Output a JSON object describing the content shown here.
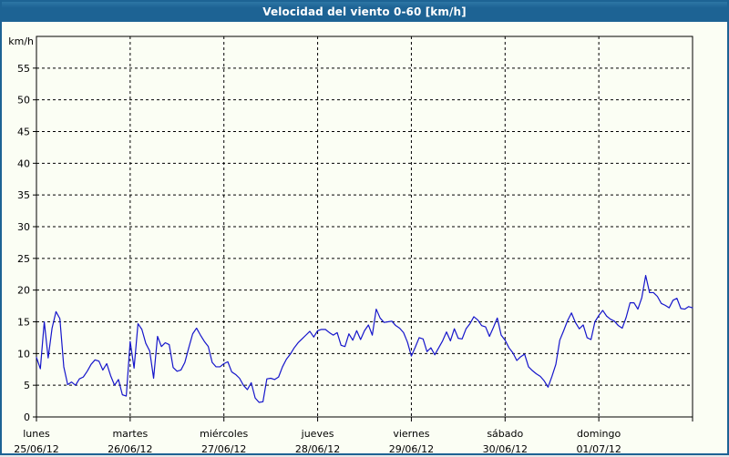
{
  "window": {
    "title": "Velocidad del viento 0-60 [km/h]"
  },
  "colors": {
    "titlebar": "#1d6394",
    "frame": "#1d6394",
    "background": "#fbfef4",
    "line": "#1515cb",
    "grid": "#000000",
    "text": "#000000"
  },
  "chart_data": {
    "type": "line",
    "title": "Velocidad del viento 0-60 [km/h]",
    "ylabel": "km/h",
    "unit": "km/h",
    "ylim": [
      0,
      60
    ],
    "y_tick_step": 5,
    "y_tick_labels": [
      "0",
      "5",
      "10",
      "15",
      "20",
      "25",
      "30",
      "35",
      "40",
      "45",
      "50",
      "55"
    ],
    "grid": "dashed",
    "legend_position": "none",
    "samples_per_day": 24,
    "x_days": [
      {
        "name": "lunes",
        "date": "25/06/12"
      },
      {
        "name": "martes",
        "date": "26/06/12"
      },
      {
        "name": "miércoles",
        "date": "27/06/12"
      },
      {
        "name": "jueves",
        "date": "28/06/12"
      },
      {
        "name": "viernes",
        "date": "29/06/12"
      },
      {
        "name": "sábado",
        "date": "30/06/12"
      },
      {
        "name": "domingo",
        "date": "01/07/12"
      }
    ],
    "series": [
      {
        "name": "velocidad del viento",
        "values": [
          9.4,
          7.6,
          15.0,
          9.3,
          14.0,
          16.6,
          15.5,
          7.9,
          5.1,
          5.5,
          5.0,
          6.0,
          6.3,
          7.2,
          8.3,
          9.0,
          8.8,
          7.4,
          8.4,
          6.5,
          5.0,
          5.9,
          3.5,
          3.3,
          11.9,
          7.7,
          14.7,
          13.8,
          11.6,
          10.4,
          6.1,
          12.7,
          11.1,
          11.7,
          11.4,
          7.8,
          7.2,
          7.4,
          8.6,
          10.9,
          13.1,
          14.0,
          12.9,
          11.9,
          11.1,
          8.6,
          7.9,
          7.9,
          8.4,
          8.7,
          7.1,
          6.7,
          6.1,
          5.0,
          4.3,
          5.4,
          3.0,
          2.3,
          2.4,
          6.0,
          6.1,
          5.9,
          6.3,
          7.9,
          9.1,
          9.9,
          10.9,
          11.7,
          12.3,
          12.9,
          13.5,
          12.6,
          13.6,
          13.8,
          13.8,
          13.3,
          12.9,
          13.3,
          11.3,
          11.1,
          13.1,
          12.1,
          13.6,
          12.2,
          13.6,
          14.5,
          12.9,
          17.0,
          15.6,
          14.9,
          15.0,
          15.1,
          14.4,
          14.0,
          13.3,
          11.8,
          9.6,
          11.0,
          12.5,
          12.3,
          10.3,
          10.9,
          9.8,
          10.9,
          12.0,
          13.4,
          12.0,
          13.9,
          12.4,
          12.3,
          13.9,
          14.7,
          15.8,
          15.3,
          14.4,
          14.2,
          12.7,
          14.1,
          15.6,
          12.9,
          12.1,
          10.9,
          10.1,
          8.9,
          9.5,
          9.9,
          7.9,
          7.3,
          6.8,
          6.4,
          5.7,
          4.7,
          6.4,
          8.3,
          12.1,
          13.6,
          15.2,
          16.4,
          14.9,
          13.9,
          14.5,
          12.5,
          12.2,
          15.0,
          16.0,
          16.8,
          15.9,
          15.4,
          15.1,
          14.4,
          14.0,
          15.7,
          18.0,
          18.0,
          17.0,
          18.8,
          22.3,
          19.6,
          19.6,
          19.0,
          17.9,
          17.6,
          17.2,
          18.4,
          18.7,
          17.1,
          17.0,
          17.4,
          17.2
        ]
      }
    ]
  }
}
